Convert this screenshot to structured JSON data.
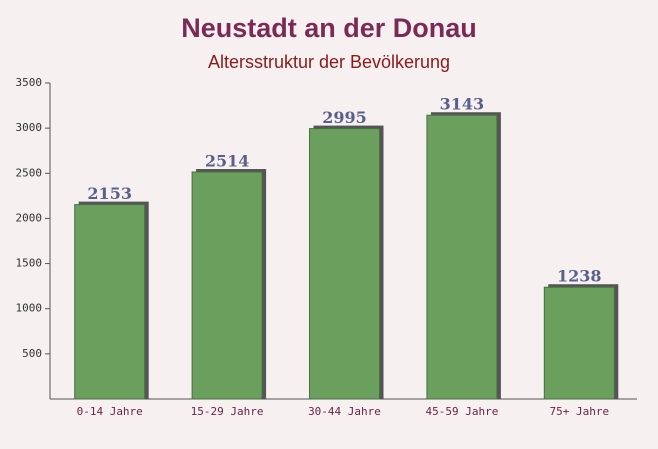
{
  "chart_data": {
    "type": "bar",
    "title": "Neustadt an der Donau",
    "subtitle": "Altersstruktur der Bevölkerung",
    "categories": [
      "0-14 Jahre",
      "15-29 Jahre",
      "30-44 Jahre",
      "45-59 Jahre",
      "75+ Jahre"
    ],
    "values": [
      2153,
      2514,
      2995,
      3143,
      1238
    ],
    "color": "#6a9f5e",
    "ylim": [
      0,
      3500
    ],
    "yticks": [
      500,
      1000,
      1500,
      2000,
      2500,
      3000,
      3500
    ]
  }
}
